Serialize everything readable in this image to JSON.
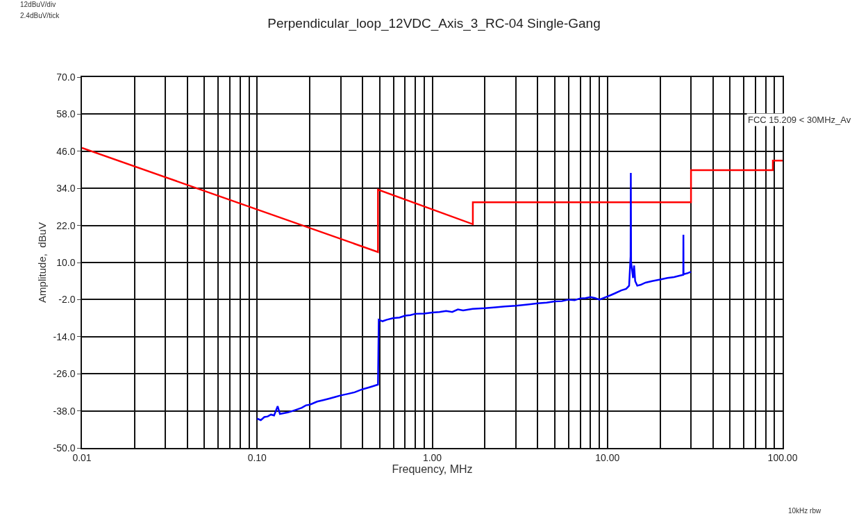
{
  "chart_data": {
    "type": "line",
    "title": "Perpendicular_loop_12VDC_Axis_3_RC-04 Single-Gang",
    "xlabel": "Frequency, MHz",
    "ylabel": "Amplitude,  dBuV",
    "annotations": [
      "12dBuV/div",
      "2.4dBuV/tick",
      "10kHz rbw"
    ],
    "log": "x",
    "grid": true,
    "legend": false,
    "xlim": [
      0.01,
      100
    ],
    "xticks": [
      {
        "value": 0.01,
        "label": "0.01"
      },
      {
        "value": 0.02,
        "label": null
      },
      {
        "value": 0.03,
        "label": null
      },
      {
        "value": 0.04,
        "label": null
      },
      {
        "value": 0.05,
        "label": null
      },
      {
        "value": 0.06,
        "label": null
      },
      {
        "value": 0.07,
        "label": null
      },
      {
        "value": 0.08,
        "label": null
      },
      {
        "value": 0.09,
        "label": null
      },
      {
        "value": 0.1,
        "label": "0.10"
      },
      {
        "value": 0.2,
        "label": null
      },
      {
        "value": 0.3,
        "label": null
      },
      {
        "value": 0.4,
        "label": null
      },
      {
        "value": 0.5,
        "label": null
      },
      {
        "value": 0.6,
        "label": null
      },
      {
        "value": 0.7,
        "label": null
      },
      {
        "value": 0.8,
        "label": null
      },
      {
        "value": 0.9,
        "label": null
      },
      {
        "value": 1,
        "label": "1.00"
      },
      {
        "value": 2,
        "label": null
      },
      {
        "value": 3,
        "label": null
      },
      {
        "value": 4,
        "label": null
      },
      {
        "value": 5,
        "label": null
      },
      {
        "value": 6,
        "label": null
      },
      {
        "value": 7,
        "label": null
      },
      {
        "value": 8,
        "label": null
      },
      {
        "value": 9,
        "label": null
      },
      {
        "value": 10,
        "label": "10.00"
      },
      {
        "value": 20,
        "label": null
      },
      {
        "value": 30,
        "label": null
      },
      {
        "value": 40,
        "label": null
      },
      {
        "value": 50,
        "label": null
      },
      {
        "value": 60,
        "label": null
      },
      {
        "value": 70,
        "label": null
      },
      {
        "value": 80,
        "label": null
      },
      {
        "value": 90,
        "label": null
      },
      {
        "value": 100,
        "label": "100.00"
      }
    ],
    "ylim": [
      -50,
      70
    ],
    "yticks": [
      {
        "value": -50,
        "label": "-50.0"
      },
      {
        "value": -38,
        "label": "-38.0"
      },
      {
        "value": -26,
        "label": "-26.0"
      },
      {
        "value": -14,
        "label": "-14.0"
      },
      {
        "value": -2,
        "label": "-2.0"
      },
      {
        "value": 10,
        "label": "10.0"
      },
      {
        "value": 22,
        "label": "22.0"
      },
      {
        "value": 34,
        "label": "34.0"
      },
      {
        "value": 46,
        "label": "46.0"
      },
      {
        "value": 58,
        "label": "58.0"
      },
      {
        "value": 70,
        "label": "70.0"
      }
    ],
    "series": [
      {
        "name": "FCC 15.209 < 30MHz_Av",
        "color": "#ff0000",
        "x": [
          0.01,
          0.49,
          0.49,
          1.705,
          1.705,
          30,
          30,
          88,
          88,
          100
        ],
        "values": [
          47.1,
          13.4,
          33.6,
          22.4,
          29.5,
          29.5,
          39.9,
          39.9,
          43.0,
          43.0
        ]
      },
      {
        "color": "#0000ff",
        "x": [
          0.1,
          0.105,
          0.11,
          0.115,
          0.12,
          0.125,
          0.131,
          0.135,
          0.14,
          0.15,
          0.16,
          0.17,
          0.18,
          0.19,
          0.2,
          0.22,
          0.24,
          0.26,
          0.28,
          0.3,
          0.33,
          0.36,
          0.4,
          0.43,
          0.46,
          0.49,
          0.495,
          0.52,
          0.55,
          0.6,
          0.65,
          0.7,
          0.75,
          0.8,
          0.9,
          1.0,
          1.1,
          1.2,
          1.3,
          1.4,
          1.5,
          1.7,
          2.0,
          2.3,
          2.6,
          3.0,
          3.5,
          4.0,
          4.5,
          5.0,
          5.5,
          6.0,
          6.5,
          7.0,
          7.5,
          8.0,
          8.5,
          9.0,
          9.5,
          10,
          10.5,
          11,
          12,
          12.8,
          13.3,
          13.56,
          13.6,
          13.65,
          13.8,
          14.0,
          14.2,
          14.4,
          14.8,
          15.5,
          16.5,
          18,
          20,
          22,
          24,
          26,
          27.1,
          27.15,
          27.2,
          28.5,
          30
        ],
        "values": [
          -40.5,
          -41,
          -40,
          -39.8,
          -39.2,
          -39.5,
          -36.5,
          -39,
          -38.8,
          -38.5,
          -38,
          -37.5,
          -37,
          -36.2,
          -36,
          -35,
          -34.5,
          -34,
          -33.5,
          -33,
          -32.5,
          -32,
          -31,
          -30.5,
          -30,
          -29.5,
          -8.5,
          -9,
          -8.5,
          -8,
          -7.8,
          -7.2,
          -7,
          -6.6,
          -6.5,
          -6.2,
          -6,
          -5.7,
          -6,
          -5.2,
          -5.5,
          -5,
          -4.8,
          -4.5,
          -4.2,
          -4,
          -3.6,
          -3.2,
          -3,
          -2.6,
          -2.5,
          -2,
          -2.2,
          -1.6,
          -1.5,
          -1.2,
          -1.5,
          -2,
          -1.5,
          -1,
          -0.5,
          0,
          1,
          1.5,
          2.5,
          12,
          39,
          10,
          8,
          5,
          9,
          4,
          2.5,
          2.8,
          3.5,
          4,
          4.5,
          5,
          5.3,
          5.8,
          6,
          19,
          6.2,
          6.5,
          7
        ]
      }
    ]
  }
}
